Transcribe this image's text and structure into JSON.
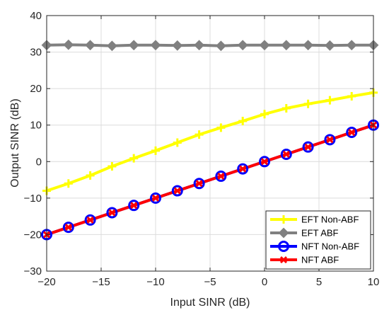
{
  "chart_data": {
    "type": "line",
    "title": "",
    "xlabel": "Input SINR (dB)",
    "ylabel": "Output SINR (dB)",
    "xlim": [
      -20,
      10
    ],
    "ylim": [
      -30,
      40
    ],
    "xticks": [
      -20,
      -15,
      -10,
      -5,
      0,
      5,
      10
    ],
    "yticks": [
      -30,
      -20,
      -10,
      0,
      10,
      20,
      30,
      40
    ],
    "grid": true,
    "legend_position": "bottom-right",
    "x": [
      -20,
      -18,
      -16,
      -14,
      -12,
      -10,
      -8,
      -6,
      -4,
      -2,
      0,
      2,
      4,
      6,
      8,
      10
    ],
    "series": [
      {
        "name": "EFT Non-ABF",
        "color": "#ffff00",
        "marker": "plus",
        "values": [
          -8,
          -6,
          -3.8,
          -1.3,
          0.9,
          3.0,
          5.2,
          7.4,
          9.3,
          11.1,
          13.0,
          14.6,
          15.8,
          16.8,
          17.9,
          18.9
        ]
      },
      {
        "name": "EFT ABF",
        "color": "#808080",
        "marker": "diamond",
        "values": [
          31.9,
          32.0,
          31.9,
          31.7,
          31.9,
          31.9,
          31.8,
          31.9,
          31.7,
          31.9,
          31.9,
          31.9,
          31.9,
          31.8,
          31.9,
          31.9
        ]
      },
      {
        "name": "NFT Non-ABF",
        "color": "#0000ff",
        "marker": "circle",
        "values": [
          -20,
          -18,
          -16,
          -14,
          -12,
          -10,
          -8,
          -6,
          -4,
          -2,
          0,
          2,
          4,
          6,
          8,
          10
        ]
      },
      {
        "name": "NFT ABF",
        "color": "#ff0000",
        "marker": "x",
        "values": [
          -20,
          -18,
          -16,
          -14,
          -12,
          -10,
          -8,
          -6,
          -4,
          -2,
          0,
          2,
          4,
          6,
          8,
          10
        ]
      }
    ]
  }
}
